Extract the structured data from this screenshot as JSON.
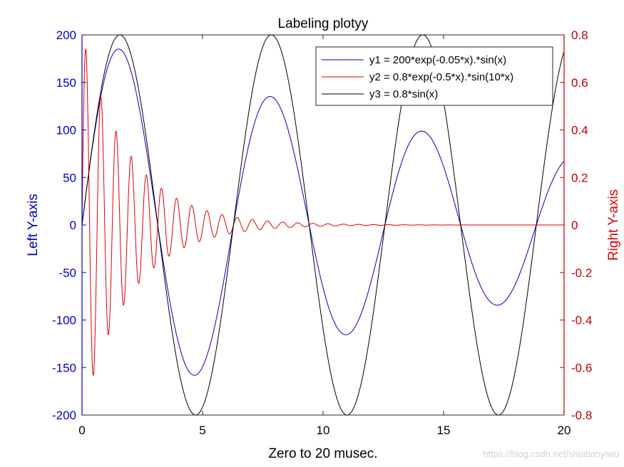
{
  "chart_data": {
    "type": "line",
    "title": "Labeling plotyy",
    "xlabel": "Zero to 20 musec.",
    "ylabel_left": "Left Y-axis",
    "ylabel_right": "Right Y-axis",
    "xlim": [
      0,
      20
    ],
    "ylim_left": [
      -200,
      200
    ],
    "ylim_right": [
      -0.8,
      0.8
    ],
    "x_ticks": [
      "0",
      "5",
      "10",
      "15",
      "20"
    ],
    "y_left_ticks": [
      "200",
      "150",
      "100",
      "50",
      "0",
      "-50",
      "-100",
      "-150",
      "-200"
    ],
    "y_right_ticks": [
      "0.8",
      "0.6",
      "0.4",
      "0.2",
      "0",
      "-0.2",
      "-0.4",
      "-0.6",
      "-0.8"
    ],
    "grid": false,
    "legend_position": "top-right",
    "series": [
      {
        "name": "y1 = 200*exp(-0.05*x).*sin(x)",
        "axis": "left",
        "color": "#0000c0",
        "expr": "200*exp(-0.05*x)*sin(x)"
      },
      {
        "name": "y2 = 0.8*exp(-0.5*x).*sin(10*x)",
        "axis": "right",
        "color": "#e00000",
        "expr": "0.8*exp(-0.5*x)*sin(10*x)"
      },
      {
        "name": "y3 = 0.8*sin(x)",
        "axis": "right",
        "color": "#000000",
        "expr": "0.8*sin(x)"
      }
    ],
    "axis_colors": {
      "left": "#0000c0",
      "right": "#c00000",
      "text": "#000000"
    }
  },
  "watermark": "https://blog.csdn.net/shuitianyiwu"
}
